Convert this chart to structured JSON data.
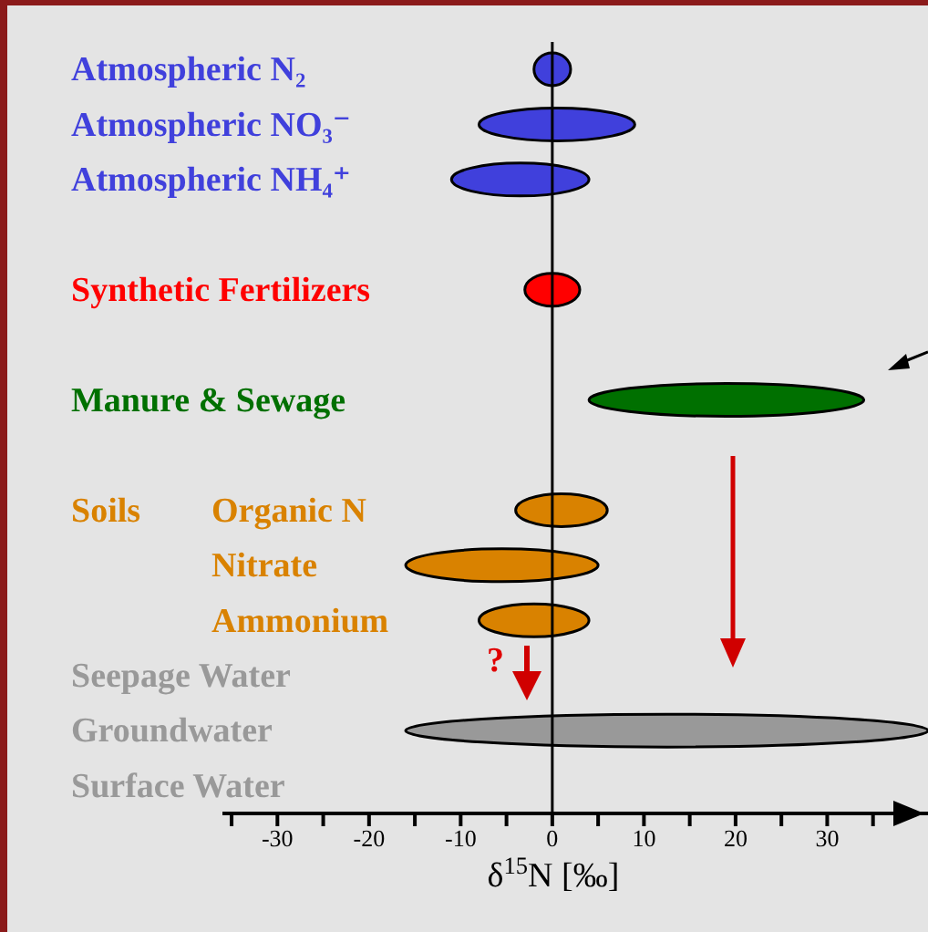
{
  "chart_data": {
    "type": "bar",
    "orientation": "horizontal",
    "categories": [
      "Atmospheric N₂",
      "Atmospheric NO₃⁻",
      "Atmospheric NH₄⁺",
      null,
      "Synthetic Fertilizers",
      null,
      "Manure & Sewage",
      null,
      "Organic N",
      "Nitrate",
      "Ammonium",
      "Seepage Water",
      "Groundwater",
      "Surface Water"
    ],
    "base": [
      -2,
      -8,
      -11,
      null,
      -3,
      null,
      4,
      null,
      -4,
      -16,
      -8,
      null,
      -16,
      null
    ],
    "values": [
      4,
      17,
      15,
      null,
      6,
      null,
      30,
      null,
      10,
      21,
      12,
      null,
      57,
      null
    ],
    "colors": [
      "#4040dc",
      "#4040dc",
      "#4040dc",
      null,
      "#ff0000",
      null,
      "#007000",
      null,
      "#d98200",
      "#d98200",
      "#d98200",
      "#999999",
      "#999999",
      "#999999"
    ],
    "xlabel": "δ$^{15}$N [‰]",
    "xlim": [
      -36,
      41
    ],
    "xticks": [
      {
        "value": -35,
        "label": null
      },
      -30,
      {
        "value": -25,
        "label": null
      },
      -20,
      {
        "value": -15,
        "label": null
      },
      -10,
      {
        "value": -5,
        "label": null
      },
      0,
      {
        "value": 5,
        "label": null
      },
      10,
      {
        "value": 15,
        "label": null
      },
      20,
      {
        "value": 25,
        "label": null
      },
      30,
      {
        "value": 35,
        "label": null
      }
    ],
    "ref_lines": [
      {
        "axis": "x",
        "value": 0,
        "color": "#000000"
      }
    ],
    "annotations": [
      "Soils",
      "?"
    ]
  }
}
